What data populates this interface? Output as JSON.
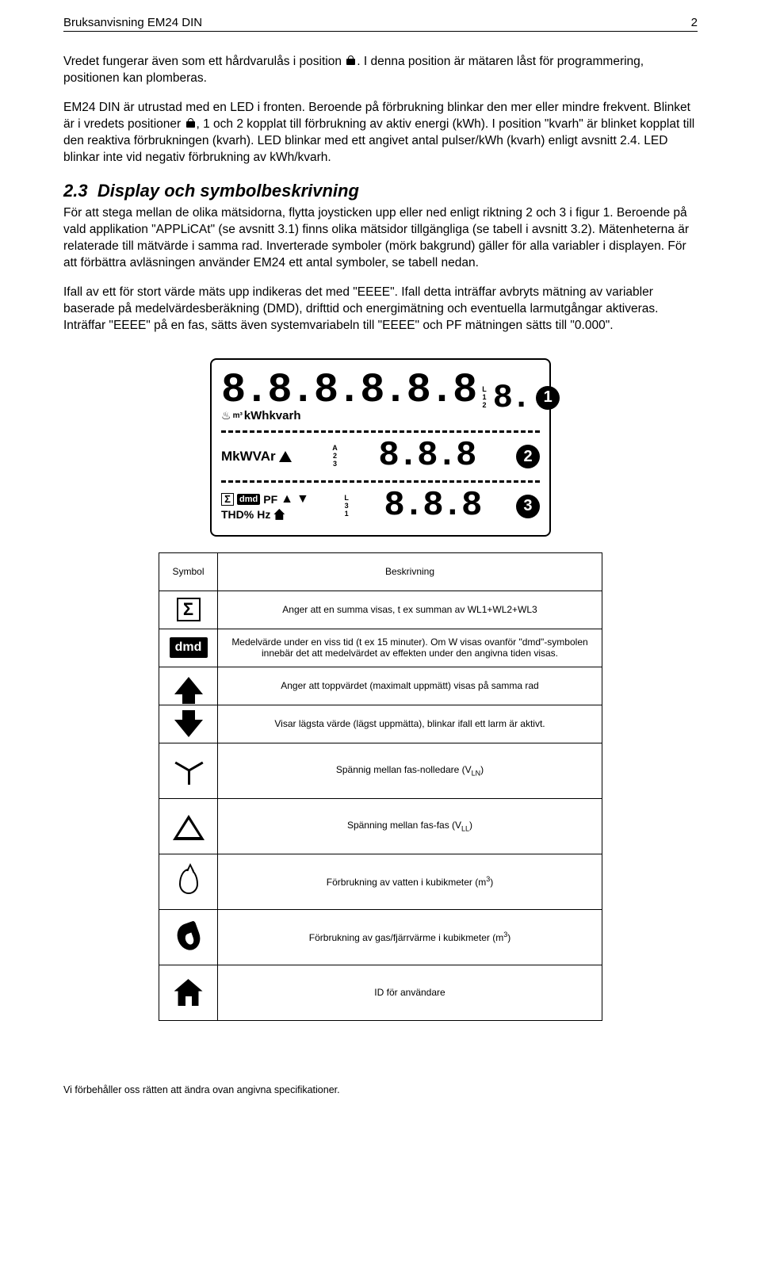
{
  "header": {
    "title": "Bruksanvisning EM24 DIN",
    "page": "2"
  },
  "para1a": "Vredet fungerar även som ett hårdvarulås i position ",
  "para1b": ". I denna position är mätaren låst för programmering, positionen kan plomberas.",
  "para2a": "EM24 DIN är utrustad med en LED i fronten. Beroende på förbrukning blinkar den mer eller mindre frekvent. Blinket är i vredets positioner ",
  "para2b": ", 1 och 2 kopplat till förbrukning av aktiv energi (kWh). I position \"kvarh\" är blinket kopplat till den reaktiva förbrukningen (kvarh). LED blinkar med ett angivet antal pulser/kWh (kvarh) enligt avsnitt 2.4. LED blinkar inte vid negativ förbrukning av kWh/kvarh.",
  "section": {
    "num": "2.3",
    "title": "Display och symbolbeskrivning"
  },
  "para3": "För att stega mellan de olika mätsidorna, flytta joysticken upp eller ned enligt riktning 2 och 3 i figur 1. Beroende på vald applikation \"APPLiCAt\" (se avsnitt 3.1) finns olika mätsidor tillgängliga (se tabell i avsnitt 3.2). Mätenheterna är relaterade till mätvärde i samma rad. Inverterade symboler (mörk bakgrund) gäller för alla variabler i displayen. För att förbättra avläsningen använder EM24 ett antal symboler, se tabell nedan.",
  "para4": "Ifall av ett för stort värde mäts upp indikeras det med \"EEEE\". Ifall detta inträffar avbryts mätning av variabler baserade på medelvärdesberäkning (DMD), drifttid och energimätning och eventuella larmutgångar aktiveras. Inträffar \"EEEE\" på en fas, sätts även systemvariabeln till \"EEEE\" och PF mätningen sätts till \"0.000\".",
  "display": {
    "row1": {
      "digits": "8.8.8.8.8.8",
      "unit_l": [
        "L",
        "1",
        "2"
      ],
      "units_below": "kWhkvarh",
      "circle": "1"
    },
    "row2": {
      "left": "MkWVAr",
      "unit_l": [
        "A",
        "2",
        "3"
      ],
      "digits": "8.8.8",
      "circle": "2"
    },
    "row3": {
      "top_pf": "PF",
      "thd": "THD%",
      "hz": "Hz",
      "unit_l": [
        "L",
        "3",
        "1"
      ],
      "digits": "8.8.8",
      "circle": "3",
      "dmd": "dmd"
    }
  },
  "table": {
    "head_symbol": "Symbol",
    "head_desc": "Beskrivning",
    "rows": [
      {
        "desc": "Anger att en summa visas, t ex summan av WL1+WL2+WL3"
      },
      {
        "desc": "Medelvärde under en viss tid (t ex 15 minuter). Om W visas ovanför \"dmd\"-symbolen innebär det att medelvärdet av effekten under den angivna tiden visas.",
        "dmd": "dmd"
      },
      {
        "desc": "Anger att toppvärdet (maximalt uppmätt) visas på samma rad"
      },
      {
        "desc": "Visar lägsta värde (lägst uppmätta), blinkar ifall ett larm är aktivt."
      },
      {
        "desc_pre": "Spännig mellan fas-nolledare (V",
        "sub": "LN",
        "desc_post": ")"
      },
      {
        "desc_pre": "Spänning mellan fas-fas (V",
        "sub": "LL",
        "desc_post": ")"
      },
      {
        "desc_pre": "Förbrukning av vatten i kubikmeter (m",
        "sup": "3",
        "desc_post": ")"
      },
      {
        "desc_pre": "Förbrukning av gas/fjärrvärme i kubikmeter (m",
        "sup": "3",
        "desc_post": ")"
      },
      {
        "desc": "ID för användare"
      }
    ]
  },
  "footer": "Vi förbehåller oss rätten att ändra ovan angivna specifikationer."
}
